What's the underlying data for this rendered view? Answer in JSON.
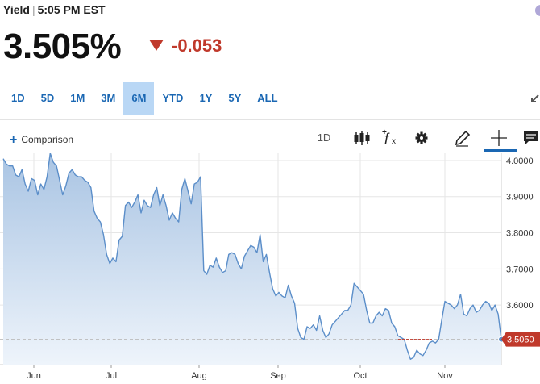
{
  "header": {
    "label": "Yield",
    "separator": "|",
    "time": "5:05 PM EST"
  },
  "quote": {
    "value": "3.505%",
    "change": "-0.053",
    "change_direction": "down",
    "change_color": "#c0392b"
  },
  "ranges": [
    {
      "label": "1D",
      "active": false
    },
    {
      "label": "5D",
      "active": false
    },
    {
      "label": "1M",
      "active": false
    },
    {
      "label": "3M",
      "active": false
    },
    {
      "label": "6M",
      "active": true
    },
    {
      "label": "YTD",
      "active": false
    },
    {
      "label": "1Y",
      "active": false
    },
    {
      "label": "5Y",
      "active": false
    },
    {
      "label": "ALL",
      "active": false
    }
  ],
  "toolbar": {
    "comparison_label": "Comparison",
    "interval_label": "1D",
    "icons": [
      "candlestick-icon",
      "function-icon",
      "settings-icon",
      "draw-pencil-icon",
      "crosshair-icon",
      "comment-icon"
    ],
    "active_tool": "crosshair-icon"
  },
  "colors": {
    "accent": "#1a67b3",
    "line": "#5b8ec9",
    "area_top": "#a9c4e3",
    "area_bottom": "#eef4fb",
    "down": "#c0392b",
    "last_price_tag": "#c0392b"
  },
  "chart_data": {
    "type": "area",
    "title": "",
    "xlabel": "",
    "ylabel": "",
    "x_tick_labels": [
      "Jun",
      "Jul",
      "Aug",
      "Sep",
      "Oct",
      "Nov"
    ],
    "y_tick_labels": [
      "4.0000",
      "3.9000",
      "3.8000",
      "3.7000",
      "3.6000"
    ],
    "ylim": [
      3.435,
      4.02
    ],
    "grid": true,
    "last_value": 3.505,
    "last_value_label": "3.5050",
    "reference_line": 3.505,
    "series": [
      {
        "values": [
          4.005,
          3.99,
          3.985,
          3.985,
          3.96,
          3.955,
          3.975,
          3.935,
          3.915,
          3.95,
          3.945,
          3.905,
          3.935,
          3.92,
          3.955,
          4.02,
          3.995,
          3.985,
          3.945,
          3.905,
          3.93,
          3.965,
          3.975,
          3.96,
          3.955,
          3.955,
          3.945,
          3.94,
          3.925,
          3.86,
          3.84,
          3.83,
          3.795,
          3.74,
          3.715,
          3.73,
          3.72,
          3.78,
          3.79,
          3.875,
          3.885,
          3.87,
          3.885,
          3.905,
          3.855,
          3.89,
          3.875,
          3.87,
          3.905,
          3.925,
          3.875,
          3.905,
          3.875,
          3.835,
          3.855,
          3.84,
          3.83,
          3.92,
          3.95,
          3.915,
          3.88,
          3.935,
          3.94,
          3.955,
          3.695,
          3.685,
          3.71,
          3.705,
          3.73,
          3.705,
          3.69,
          3.695,
          3.74,
          3.745,
          3.74,
          3.715,
          3.7,
          3.735,
          3.75,
          3.765,
          3.76,
          3.745,
          3.795,
          3.72,
          3.74,
          3.69,
          3.645,
          3.625,
          3.635,
          3.625,
          3.62,
          3.655,
          3.625,
          3.605,
          3.535,
          3.51,
          3.505,
          3.54,
          3.535,
          3.545,
          3.53,
          3.57,
          3.53,
          3.51,
          3.52,
          3.545,
          3.555,
          3.565,
          3.575,
          3.585,
          3.585,
          3.6,
          3.66,
          3.65,
          3.64,
          3.63,
          3.585,
          3.55,
          3.55,
          3.57,
          3.58,
          3.57,
          3.59,
          3.585,
          3.55,
          3.54,
          3.515,
          3.51,
          3.505,
          3.475,
          3.45,
          3.455,
          3.475,
          3.465,
          3.46,
          3.475,
          3.495,
          3.5,
          3.495,
          3.505,
          3.56,
          3.61,
          3.605,
          3.6,
          3.59,
          3.6,
          3.63,
          3.575,
          3.57,
          3.59,
          3.6,
          3.58,
          3.585,
          3.6,
          3.61,
          3.605,
          3.585,
          3.6,
          3.575,
          3.505
        ]
      }
    ]
  }
}
